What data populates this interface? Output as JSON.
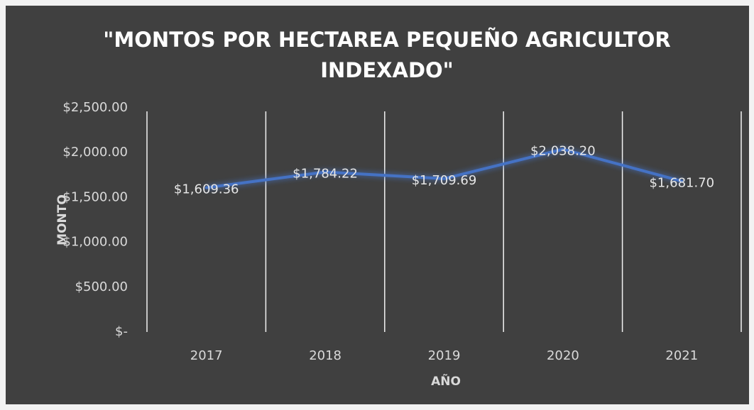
{
  "chart_data": {
    "type": "line",
    "title": [
      "\"MONTOS POR HECTAREA PEQUEÑO AGRICULTOR",
      "INDEXADO\""
    ],
    "x_label": "AÑO",
    "y_label": "MONTO",
    "categories": [
      "2017",
      "2018",
      "2019",
      "2020",
      "2021"
    ],
    "series": [
      {
        "name": "MONTO",
        "color": "#4472c4",
        "values": [
          1609.36,
          1784.22,
          1709.69,
          2038.2,
          1681.7
        ],
        "value_labels": [
          "$1,609.36",
          "$1,784.22",
          "$1,709.69",
          "$2,038.20",
          "$1,681.70"
        ]
      }
    ],
    "ylim": [
      0,
      2500
    ],
    "yticks": [
      {
        "value": 0,
        "label": "$-"
      },
      {
        "value": 500,
        "label": "$500.00"
      },
      {
        "value": 1000,
        "label": "$1,000.00"
      },
      {
        "value": 1500,
        "label": "$1,500.00"
      },
      {
        "value": 2000,
        "label": "$2,000.00"
      },
      {
        "value": 2500,
        "label": "$2,500.00"
      }
    ],
    "grid": "vertical"
  }
}
